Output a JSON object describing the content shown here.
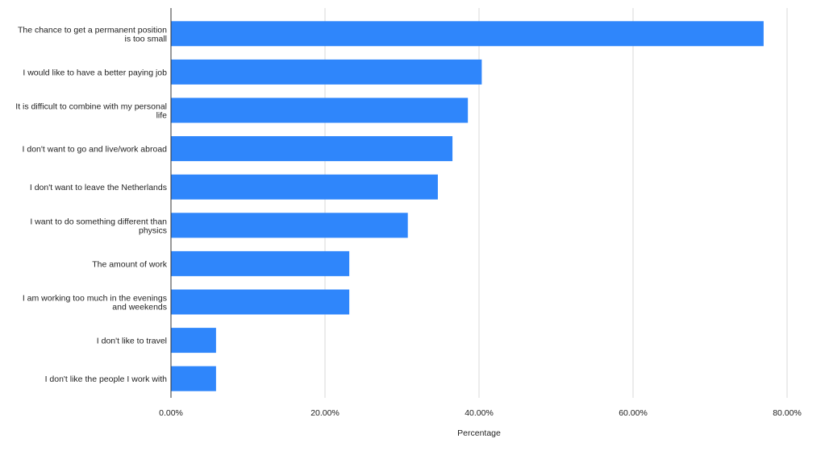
{
  "chart_data": {
    "type": "bar",
    "orientation": "horizontal",
    "categories": [
      "The chance to get a permanent position is too small",
      "I would like to have a better paying job",
      "It is difficult to combine with my personal life",
      "I don't want to go and live/work abroad",
      "I don't want to leave the Netherlands",
      "I want to do something different than physics",
      "The amount of work",
      "I am working too much in the evenings and weekends",
      "I don't like to travel",
      "I don't like the people I work with"
    ],
    "category_lines": [
      [
        "The chance to get a permanent position",
        "is too small"
      ],
      [
        "I would like to have a better paying job"
      ],
      [
        "It is difficult to combine with my personal",
        "life"
      ],
      [
        "I don't want to go and live/work abroad"
      ],
      [
        "I don't want to leave the Netherlands"
      ],
      [
        "I want to do something different than",
        "physics"
      ],
      [
        "The amount of work"
      ],
      [
        "I am working too much in the evenings",
        "and weekends"
      ],
      [
        "I don't like to travel"
      ],
      [
        "I don't like the people I work with"
      ]
    ],
    "values": [
      0.769,
      0.403,
      0.385,
      0.365,
      0.346,
      0.307,
      0.231,
      0.231,
      0.058,
      0.058
    ],
    "xlabel": "Percentage",
    "ylabel": "",
    "xlim": [
      0,
      0.8
    ],
    "xticks": [
      0,
      0.2,
      0.4,
      0.6,
      0.8
    ],
    "xtick_labels": [
      "0.00%",
      "20.00%",
      "40.00%",
      "60.00%",
      "80.00%"
    ],
    "bar_color": "#2f86fb",
    "grid": true,
    "grid_color": "#d9d9d9",
    "legend": false
  }
}
